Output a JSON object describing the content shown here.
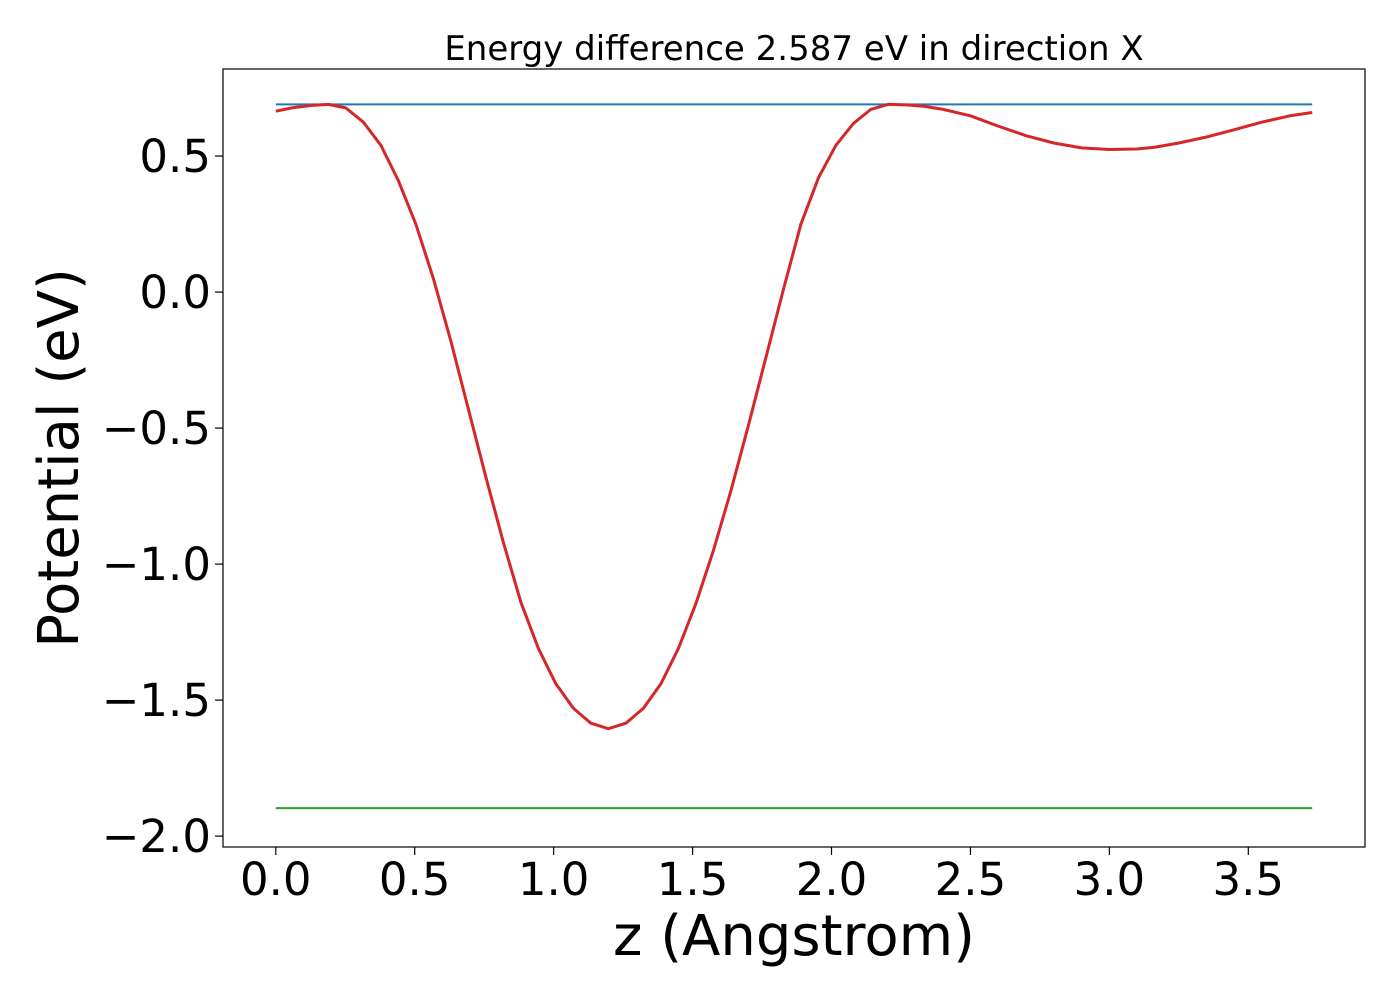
{
  "chart_data": {
    "type": "line",
    "title": "Energy difference 2.587 eV in direction X",
    "xlabel": "z (Angstrom)",
    "ylabel": "Potential (eV)",
    "xlim": [
      -0.19,
      3.92
    ],
    "ylim": [
      -2.04,
      0.82
    ],
    "xticks": [
      0.0,
      0.5,
      1.0,
      1.5,
      2.0,
      2.5,
      3.0,
      3.5
    ],
    "xtick_labels": [
      "0.0",
      "0.5",
      "1.0",
      "1.5",
      "2.0",
      "2.5",
      "3.0",
      "3.5"
    ],
    "yticks": [
      0.5,
      0.0,
      -0.5,
      -1.0,
      -1.5,
      -2.0
    ],
    "ytick_labels": [
      "0.5",
      "0.0",
      "−0.5",
      "−1.0",
      "−1.5",
      "−2.0"
    ],
    "grid": false,
    "series": [
      {
        "color": "#1f77b4",
        "x": [
          0.0,
          3.73
        ],
        "y": [
          0.69,
          0.69
        ]
      },
      {
        "color": "#2ca02c",
        "x": [
          0.0,
          3.73
        ],
        "y": [
          -1.897,
          -1.897
        ]
      },
      {
        "color": "#d62728",
        "x": [
          0.0,
          0.063,
          0.126,
          0.189,
          0.252,
          0.315,
          0.378,
          0.441,
          0.504,
          0.567,
          0.63,
          0.693,
          0.756,
          0.819,
          0.882,
          0.945,
          1.008,
          1.071,
          1.134,
          1.197,
          1.26,
          1.323,
          1.386,
          1.449,
          1.512,
          1.575,
          1.638,
          1.701,
          1.764,
          1.827,
          1.89,
          1.953,
          2.016,
          2.079,
          2.142,
          2.205,
          2.268,
          2.331,
          2.4,
          2.5,
          2.6,
          2.7,
          2.8,
          2.9,
          3.0,
          3.1,
          3.16,
          3.25,
          3.35,
          3.45,
          3.55,
          3.65,
          3.73
        ],
        "y": [
          0.665,
          0.678,
          0.686,
          0.69,
          0.677,
          0.625,
          0.54,
          0.41,
          0.25,
          0.05,
          -0.18,
          -0.43,
          -0.68,
          -0.92,
          -1.14,
          -1.31,
          -1.44,
          -1.53,
          -1.585,
          -1.605,
          -1.585,
          -1.53,
          -1.44,
          -1.31,
          -1.145,
          -0.95,
          -0.73,
          -0.49,
          -0.24,
          0.01,
          0.25,
          0.42,
          0.54,
          0.62,
          0.672,
          0.69,
          0.688,
          0.683,
          0.672,
          0.648,
          0.61,
          0.575,
          0.548,
          0.53,
          0.524,
          0.526,
          0.532,
          0.548,
          0.57,
          0.597,
          0.625,
          0.648,
          0.66
        ]
      }
    ]
  }
}
